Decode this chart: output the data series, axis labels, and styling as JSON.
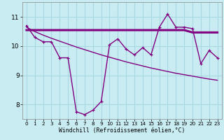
{
  "xlabel": "Windchill (Refroidissement éolien,°C)",
  "background_color": "#c8ecf2",
  "grid_color": "#aad8e0",
  "line_color": "#800080",
  "x": [
    0,
    1,
    2,
    3,
    4,
    5,
    6,
    7,
    8,
    9,
    10,
    11,
    12,
    13,
    14,
    15,
    16,
    17,
    18,
    19,
    20,
    21,
    22,
    23
  ],
  "y_zigzag": [
    10.7,
    10.3,
    10.15,
    10.15,
    9.6,
    9.6,
    7.75,
    7.65,
    7.8,
    8.1,
    10.05,
    10.25,
    9.9,
    9.7,
    9.95,
    9.7,
    10.65,
    11.1,
    10.65,
    10.65,
    10.6,
    9.4,
    9.85,
    9.6
  ],
  "y_flat": [
    10.55,
    10.55,
    10.55,
    10.55,
    10.55,
    10.55,
    10.55,
    10.55,
    10.55,
    10.55,
    10.55,
    10.55,
    10.55,
    10.55,
    10.55,
    10.55,
    10.55,
    10.55,
    10.55,
    10.55,
    10.47,
    10.47,
    10.47,
    10.47
  ],
  "y_trend": [
    10.65,
    10.5,
    10.38,
    10.27,
    10.17,
    10.07,
    9.97,
    9.88,
    9.79,
    9.7,
    9.62,
    9.54,
    9.46,
    9.39,
    9.32,
    9.25,
    9.19,
    9.13,
    9.07,
    9.02,
    8.97,
    8.92,
    8.87,
    8.83
  ],
  "ylim": [
    7.5,
    11.5
  ],
  "yticks": [
    8,
    9,
    10,
    11
  ],
  "xticks": [
    0,
    1,
    2,
    3,
    4,
    5,
    6,
    7,
    8,
    9,
    10,
    11,
    12,
    13,
    14,
    15,
    16,
    17,
    18,
    19,
    20,
    21,
    22,
    23
  ],
  "xlim": [
    -0.5,
    23.5
  ]
}
